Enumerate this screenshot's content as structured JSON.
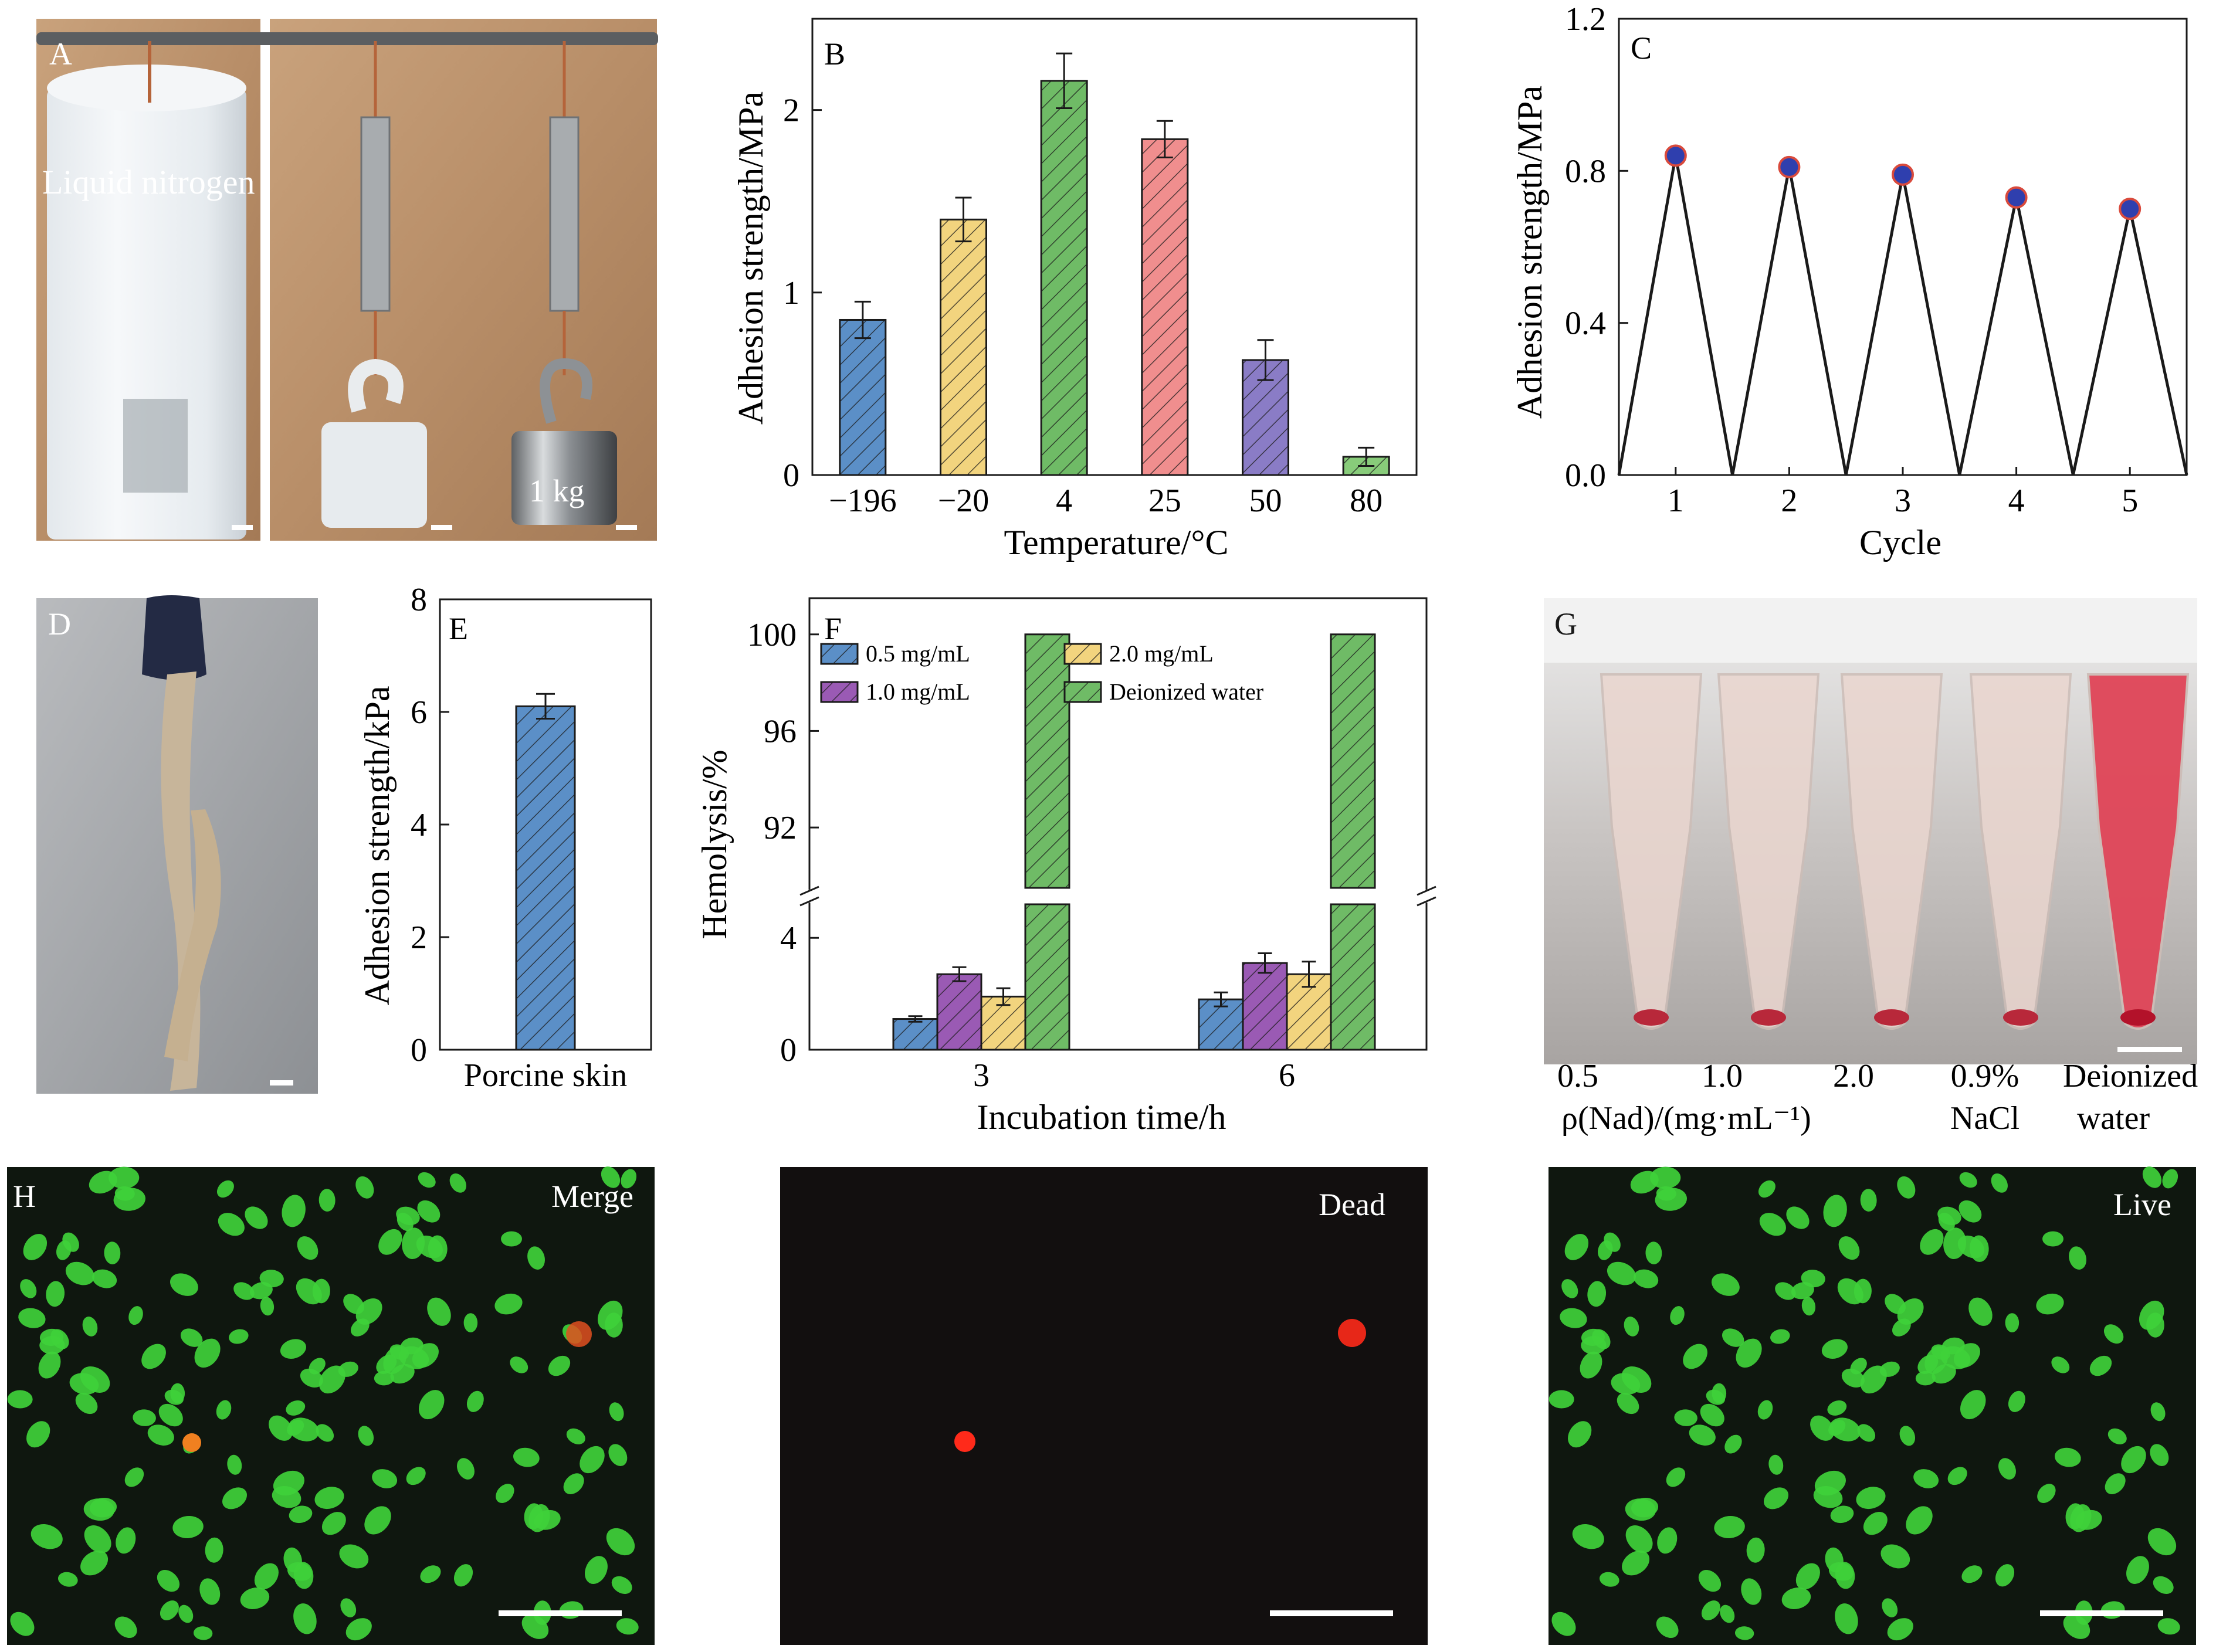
{
  "photo_labels": {
    "a": {
      "letter": "A",
      "liquid_nitrogen": "Liquid nitrogen",
      "weight": "1 kg"
    },
    "d": {
      "letter": "D"
    },
    "g": {
      "letter": "G",
      "tube_labels": [
        "0.5",
        "1.0",
        "2.0",
        "0.9%",
        "Deionized"
      ],
      "xlabel_line2_left": "ρ(Nad)/(mg·mL⁻¹)",
      "xlabel_line2_mid": "NaCl",
      "xlabel_line2_right": "water"
    },
    "h": {
      "letter": "H",
      "merge": "Merge",
      "dead": "Dead",
      "live": "Live"
    }
  },
  "colors": {
    "blue": "#5b8fc7",
    "yellow": "#f2d47e",
    "green": "#6fbb66",
    "pink": "#f08e8e",
    "purple": "#8a7cc6",
    "lightgreen": "#88cc7a",
    "violet": "#9a5ab4",
    "cell_green": "#3fd13a",
    "cell_bg": "#0f170f",
    "dead_bg": "#120f0f"
  },
  "chart_data": [
    {
      "panel": "B",
      "type": "bar",
      "categories": [
        "−196",
        "−20",
        "4",
        "25",
        "50",
        "80"
      ],
      "values": [
        0.85,
        1.4,
        2.16,
        1.84,
        0.63,
        0.1
      ],
      "errors": [
        0.1,
        0.12,
        0.15,
        0.1,
        0.11,
        0.05
      ],
      "bar_colors": [
        "blue",
        "yellow",
        "green",
        "pink",
        "purple",
        "lightgreen"
      ],
      "xlabel": "Temperature/°C",
      "ylabel": "Adhesion strength/MPa",
      "ylim": [
        0,
        2.5
      ],
      "yticks": [
        "0",
        "1",
        "2"
      ],
      "yticks_values": [
        0,
        1,
        2
      ],
      "hatched": true
    },
    {
      "panel": "C",
      "type": "line",
      "x": [
        1,
        1.5,
        2,
        2.5,
        3,
        3.5,
        4,
        4.5,
        5,
        5.5
      ],
      "y": [
        0.84,
        0.0,
        0.81,
        0.0,
        0.79,
        0.0,
        0.73,
        0.0,
        0.7,
        0.0
      ],
      "markers_x": [
        1,
        2,
        3,
        4,
        5
      ],
      "markers_y": [
        0.84,
        0.81,
        0.79,
        0.73,
        0.7
      ],
      "xlabel": "Cycle",
      "ylabel": "Adhesion strength/MPa",
      "xlim": [
        0.5,
        5.5
      ],
      "ylim": [
        0,
        1.2
      ],
      "xticks": [
        "1",
        "2",
        "3",
        "4",
        "5"
      ],
      "yticks": [
        "0.0",
        "0.4",
        "0.8",
        "1.2"
      ]
    },
    {
      "panel": "E",
      "type": "bar",
      "categories": [
        "Porcine skin"
      ],
      "values": [
        6.1
      ],
      "errors": [
        0.22
      ],
      "xlabel": "",
      "ylabel": "Adhesion strength/kPa",
      "ylim": [
        0,
        8
      ],
      "yticks": [
        "0",
        "2",
        "4",
        "6",
        "8"
      ]
    },
    {
      "panel": "F",
      "type": "bar",
      "categories": [
        "3",
        "6"
      ],
      "series": [
        {
          "name": "0.5 mg/mL",
          "values": [
            1.1,
            1.8
          ],
          "errors": [
            0.1,
            0.25
          ],
          "color": "blue"
        },
        {
          "name": "1.0 mg/mL",
          "values": [
            2.7,
            3.1
          ],
          "errors": [
            0.25,
            0.35
          ],
          "color": "violet"
        },
        {
          "name": "2.0 mg/mL",
          "values": [
            1.9,
            2.7
          ],
          "errors": [
            0.3,
            0.45
          ],
          "color": "yellow"
        },
        {
          "name": "Deionized water",
          "values": [
            100,
            100
          ],
          "errors": [
            0,
            0
          ],
          "color": "green"
        }
      ],
      "xlabel": "Incubation time/h",
      "ylabel": "Hemolysis/%",
      "broken_axis": {
        "lower": [
          0,
          5.2
        ],
        "upper": [
          89.5,
          101.5
        ]
      },
      "yticks_lower": [
        "0",
        "4"
      ],
      "yticks_upper": [
        "92",
        "96",
        "100"
      ],
      "legend_position": "top-left"
    }
  ]
}
